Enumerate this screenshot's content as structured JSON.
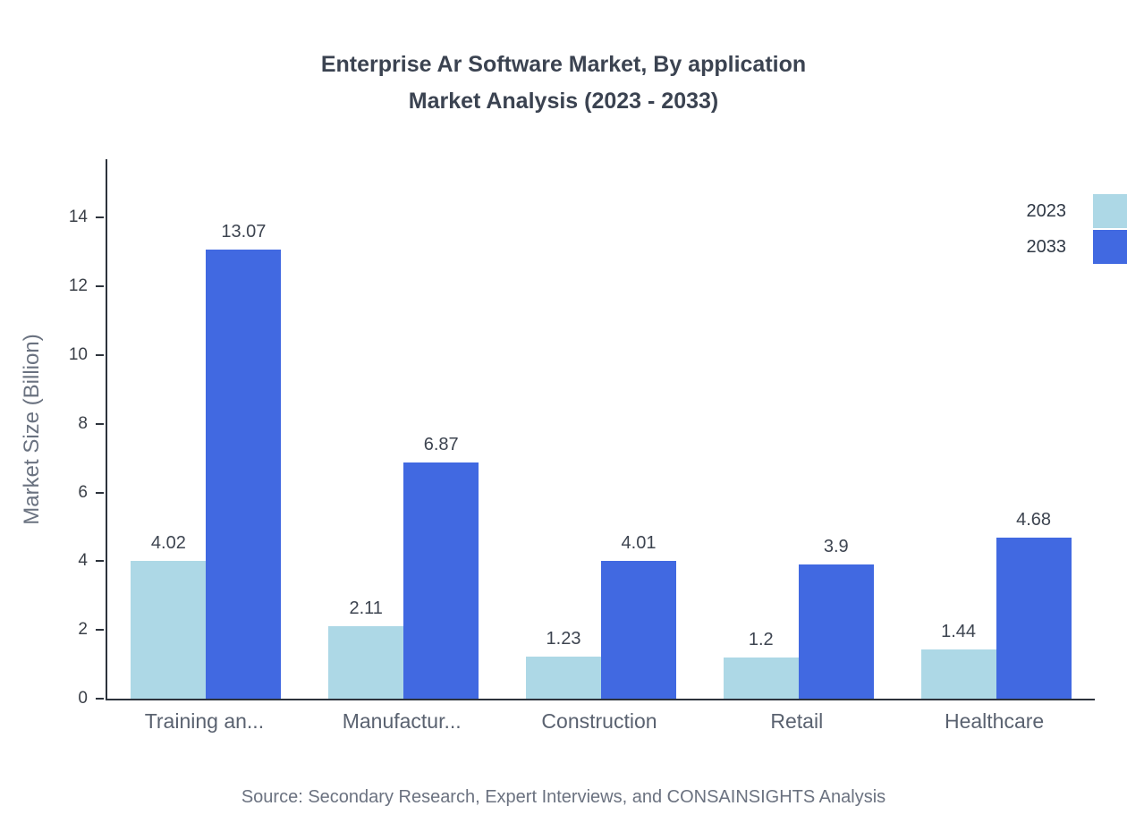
{
  "source": "Source: Secondary Research, Expert Interviews, and CONSAINSIGHTS Analysis",
  "chart_data": {
    "type": "bar",
    "title": "Enterprise Ar Software Market, By application Market Analysis (2023 - 2033)",
    "title_lines": [
      "Enterprise Ar Software Market, By application",
      "Market Analysis (2023 - 2033)"
    ],
    "categories": [
      "Training an...",
      "Manufactur...",
      "Construction",
      "Retail",
      "Healthcare"
    ],
    "series": [
      {
        "name": "2023",
        "color": "#ADD8E6",
        "values": [
          4.02,
          2.11,
          1.23,
          1.2,
          1.44
        ]
      },
      {
        "name": "2033",
        "color": "#4169E1",
        "values": [
          13.07,
          6.87,
          4.01,
          3.9,
          4.68
        ]
      }
    ],
    "xlabel": "",
    "ylabel": "Market Size (Billion)",
    "ylim": [
      0,
      15.7
    ],
    "yticks": [
      0,
      2,
      4,
      6,
      8,
      10,
      12,
      14
    ],
    "grid": false,
    "legend_position": "top-right"
  }
}
